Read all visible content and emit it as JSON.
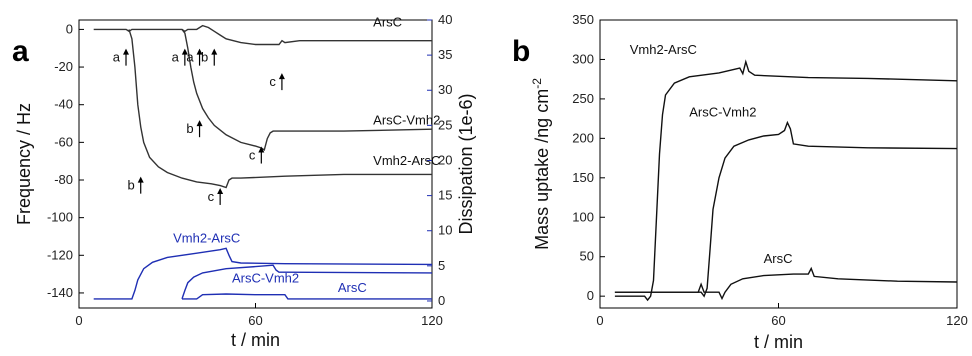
{
  "chart_data": [
    {
      "panel": "a",
      "type": "line",
      "xlabel": "t / min",
      "ylabel": "Frequency / Hz",
      "y2label": "Dissipation (1e-6)",
      "xlim": [
        0,
        120
      ],
      "ylim": [
        -148,
        5
      ],
      "y2lim": [
        -1,
        40
      ],
      "xticks": [
        0,
        60,
        120
      ],
      "yticks": [
        0,
        -20,
        -40,
        -60,
        -80,
        -100,
        -120,
        -140
      ],
      "y2ticks": [
        0,
        5,
        10,
        15,
        20,
        25,
        30,
        35,
        40
      ],
      "ylabel_color": "#000000",
      "y2label_color": "#1f2fb4",
      "frequency_color": "#333333",
      "dissipation_color": "#1f2fb4",
      "frequency_series": [
        {
          "name": "ArsC",
          "label_x": 100,
          "label_y": 1.5,
          "points": [
            [
              5,
              0
            ],
            [
              16,
              0
            ],
            [
              17,
              -1
            ],
            [
              18,
              0
            ],
            [
              35,
              0
            ],
            [
              36,
              -1
            ],
            [
              37,
              0
            ],
            [
              40,
              0
            ],
            [
              42,
              2
            ],
            [
              44,
              1
            ],
            [
              46,
              -1
            ],
            [
              48,
              -3
            ],
            [
              50,
              -5
            ],
            [
              55,
              -7
            ],
            [
              60,
              -8
            ],
            [
              68,
              -8
            ],
            [
              69,
              -6
            ],
            [
              70,
              -7
            ],
            [
              75,
              -6
            ],
            [
              90,
              -6
            ],
            [
              120,
              -6
            ]
          ]
        },
        {
          "name": "ArsC-Vmh2",
          "label_x": 100,
          "label_y": -50.5,
          "points": [
            [
              35,
              0
            ],
            [
              36,
              -2
            ],
            [
              37,
              -10
            ],
            [
              38,
              -20
            ],
            [
              39,
              -28
            ],
            [
              40,
              -34
            ],
            [
              42,
              -42
            ],
            [
              44,
              -47
            ],
            [
              46,
              -51
            ],
            [
              50,
              -56
            ],
            [
              55,
              -60
            ],
            [
              60,
              -62
            ],
            [
              62,
              -63
            ],
            [
              63,
              -64
            ],
            [
              64,
              -58
            ],
            [
              65,
              -55
            ],
            [
              66,
              -54
            ],
            [
              70,
              -54
            ],
            [
              90,
              -54
            ],
            [
              120,
              -53
            ]
          ]
        },
        {
          "name": "Vmh2-ArsC",
          "label_x": 100,
          "label_y": -72,
          "points": [
            [
              17,
              0
            ],
            [
              18,
              -5
            ],
            [
              19,
              -20
            ],
            [
              20,
              -40
            ],
            [
              21,
              -52
            ],
            [
              22,
              -60
            ],
            [
              24,
              -68
            ],
            [
              27,
              -73
            ],
            [
              30,
              -76
            ],
            [
              35,
              -79
            ],
            [
              40,
              -81
            ],
            [
              45,
              -82
            ],
            [
              48,
              -83
            ],
            [
              50,
              -84
            ],
            [
              51,
              -80
            ],
            [
              52,
              -79
            ],
            [
              55,
              -79
            ],
            [
              70,
              -78
            ],
            [
              90,
              -77
            ],
            [
              120,
              -77
            ]
          ]
        }
      ],
      "dissipation_series": [
        {
          "name": "Vmh2-ArsC",
          "label_x": 32,
          "label_y": 8.3,
          "points": [
            [
              5,
              0.3
            ],
            [
              18,
              0.3
            ],
            [
              19,
              1.5
            ],
            [
              20,
              3
            ],
            [
              22,
              4.6
            ],
            [
              25,
              5.5
            ],
            [
              30,
              6.2
            ],
            [
              40,
              6.8
            ],
            [
              48,
              7.3
            ],
            [
              50,
              7.5
            ],
            [
              51,
              6.5
            ],
            [
              52,
              5.6
            ],
            [
              55,
              5.4
            ],
            [
              70,
              5.3
            ],
            [
              120,
              5.2
            ]
          ]
        },
        {
          "name": "ArsC-Vmh2",
          "label_x": 52,
          "label_y": 2.6,
          "points": [
            [
              35,
              0.3
            ],
            [
              36,
              1.5
            ],
            [
              37,
              2.6
            ],
            [
              39,
              3.4
            ],
            [
              42,
              4
            ],
            [
              50,
              4.6
            ],
            [
              60,
              4.9
            ],
            [
              66,
              5.1
            ],
            [
              67,
              4.4
            ],
            [
              68,
              4.1
            ],
            [
              70,
              4.1
            ],
            [
              120,
              4.0
            ]
          ]
        },
        {
          "name": "ArsC",
          "label_x": 88,
          "label_y": 1.3,
          "points": [
            [
              35,
              0.3
            ],
            [
              40,
              0.3
            ],
            [
              42,
              0.9
            ],
            [
              50,
              1.0
            ],
            [
              60,
              0.9
            ],
            [
              70,
              0.9
            ],
            [
              71,
              0.3
            ],
            [
              120,
              0.3
            ]
          ]
        }
      ],
      "annotations": [
        {
          "text": "a",
          "x": 17,
          "y": -15
        },
        {
          "text": "a",
          "x": 37,
          "y": -15
        },
        {
          "text": "a",
          "x": 42,
          "y": -15
        },
        {
          "text": "b",
          "x": 47,
          "y": -15
        },
        {
          "text": "c",
          "x": 70,
          "y": -28
        },
        {
          "text": "b",
          "x": 42,
          "y": -53
        },
        {
          "text": "c",
          "x": 63,
          "y": -67
        },
        {
          "text": "b",
          "x": 22,
          "y": -83
        },
        {
          "text": "c",
          "x": 49,
          "y": -89
        }
      ]
    },
    {
      "panel": "b",
      "type": "line",
      "xlabel": "t / min",
      "ylabel": "Mass uptake /ng cm",
      "ylabel_sup": "-2",
      "xlim": [
        0,
        120
      ],
      "ylim": [
        -15,
        350
      ],
      "xticks": [
        0,
        60,
        120
      ],
      "yticks": [
        0,
        50,
        100,
        150,
        200,
        250,
        300,
        350
      ],
      "series_color": "#111111",
      "series": [
        {
          "name": "Vmh2-ArsC",
          "label_x": 10,
          "label_y": 307,
          "points": [
            [
              5,
              0
            ],
            [
              15,
              0
            ],
            [
              16,
              -5
            ],
            [
              17,
              0
            ],
            [
              18,
              20
            ],
            [
              19,
              100
            ],
            [
              20,
              180
            ],
            [
              21,
              230
            ],
            [
              22,
              255
            ],
            [
              25,
              270
            ],
            [
              30,
              278
            ],
            [
              40,
              283
            ],
            [
              47,
              289
            ],
            [
              48,
              282
            ],
            [
              49,
              297
            ],
            [
              50,
              285
            ],
            [
              52,
              280
            ],
            [
              70,
              277
            ],
            [
              90,
              276
            ],
            [
              120,
              273
            ]
          ]
        },
        {
          "name": "ArsC-Vmh2",
          "label_x": 30,
          "label_y": 228,
          "points": [
            [
              5,
              5
            ],
            [
              34,
              5
            ],
            [
              35,
              0
            ],
            [
              36,
              10
            ],
            [
              37,
              60
            ],
            [
              38,
              110
            ],
            [
              40,
              150
            ],
            [
              42,
              175
            ],
            [
              45,
              190
            ],
            [
              50,
              198
            ],
            [
              55,
              203
            ],
            [
              60,
              205
            ],
            [
              62,
              210
            ],
            [
              63,
              220
            ],
            [
              64,
              212
            ],
            [
              65,
              193
            ],
            [
              70,
              190
            ],
            [
              90,
              188
            ],
            [
              120,
              187
            ]
          ]
        },
        {
          "name": "ArsC",
          "label_x": 55,
          "label_y": 42,
          "points": [
            [
              5,
              5
            ],
            [
              33,
              5
            ],
            [
              34,
              15
            ],
            [
              35,
              5
            ],
            [
              40,
              5
            ],
            [
              41,
              -3
            ],
            [
              42,
              5
            ],
            [
              44,
              15
            ],
            [
              48,
              22
            ],
            [
              55,
              26
            ],
            [
              65,
              28
            ],
            [
              70,
              28
            ],
            [
              71,
              35
            ],
            [
              72,
              25
            ],
            [
              80,
              22
            ],
            [
              100,
              19
            ],
            [
              120,
              18
            ]
          ]
        }
      ]
    }
  ]
}
